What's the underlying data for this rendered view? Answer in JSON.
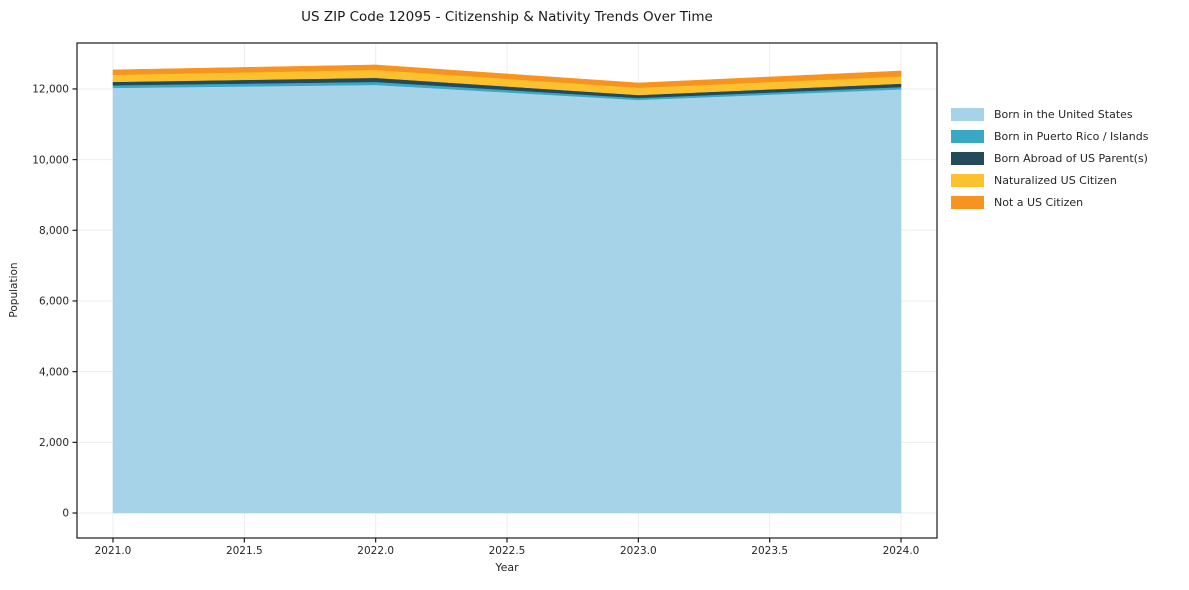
{
  "chart_data": {
    "type": "area",
    "stacked": true,
    "title": "US ZIP Code 12095 - Citizenship & Nativity Trends Over Time",
    "xlabel": "Year",
    "ylabel": "Population",
    "x": [
      2021.0,
      2022.0,
      2023.0,
      2024.0
    ],
    "series": [
      {
        "name": "Born in the United States",
        "color": "#a7d3e8",
        "values": [
          12030,
          12115,
          11690,
          11990
        ]
      },
      {
        "name": "Born in Puerto Rico / Islands",
        "color": "#3aa8c4",
        "values": [
          75,
          85,
          55,
          65
        ]
      },
      {
        "name": "Born Abroad of US Parent(s)",
        "color": "#24495b",
        "values": [
          95,
          115,
          85,
          95
        ]
      },
      {
        "name": "Naturalized US Citizen",
        "color": "#fcc22e",
        "values": [
          200,
          225,
          205,
          205
        ]
      },
      {
        "name": "Not a US Citizen",
        "color": "#f7941f",
        "values": [
          140,
          140,
          135,
          155
        ]
      }
    ],
    "xticks": {
      "values": [
        2021.0,
        2021.5,
        2022.0,
        2022.5,
        2023.0,
        2023.5,
        2024.0
      ],
      "labels": [
        "2021.0",
        "2021.5",
        "2022.0",
        "2022.5",
        "2023.0",
        "2023.5",
        "2024.0"
      ]
    },
    "yticks": {
      "values": [
        0,
        2000,
        4000,
        6000,
        8000,
        10000,
        12000
      ],
      "labels": [
        "0",
        "2,000",
        "4,000",
        "6,000",
        "8,000",
        "10,000",
        "12,000"
      ]
    },
    "xlim": [
      2020.863,
      2024.137
    ],
    "ylim": [
      -707,
      13300
    ],
    "grid": true,
    "legend_position": "right",
    "colors": {
      "grid": "#ededed",
      "spine": "#1a1a1a",
      "tick_text": "#262626",
      "background": "#ffffff"
    }
  }
}
